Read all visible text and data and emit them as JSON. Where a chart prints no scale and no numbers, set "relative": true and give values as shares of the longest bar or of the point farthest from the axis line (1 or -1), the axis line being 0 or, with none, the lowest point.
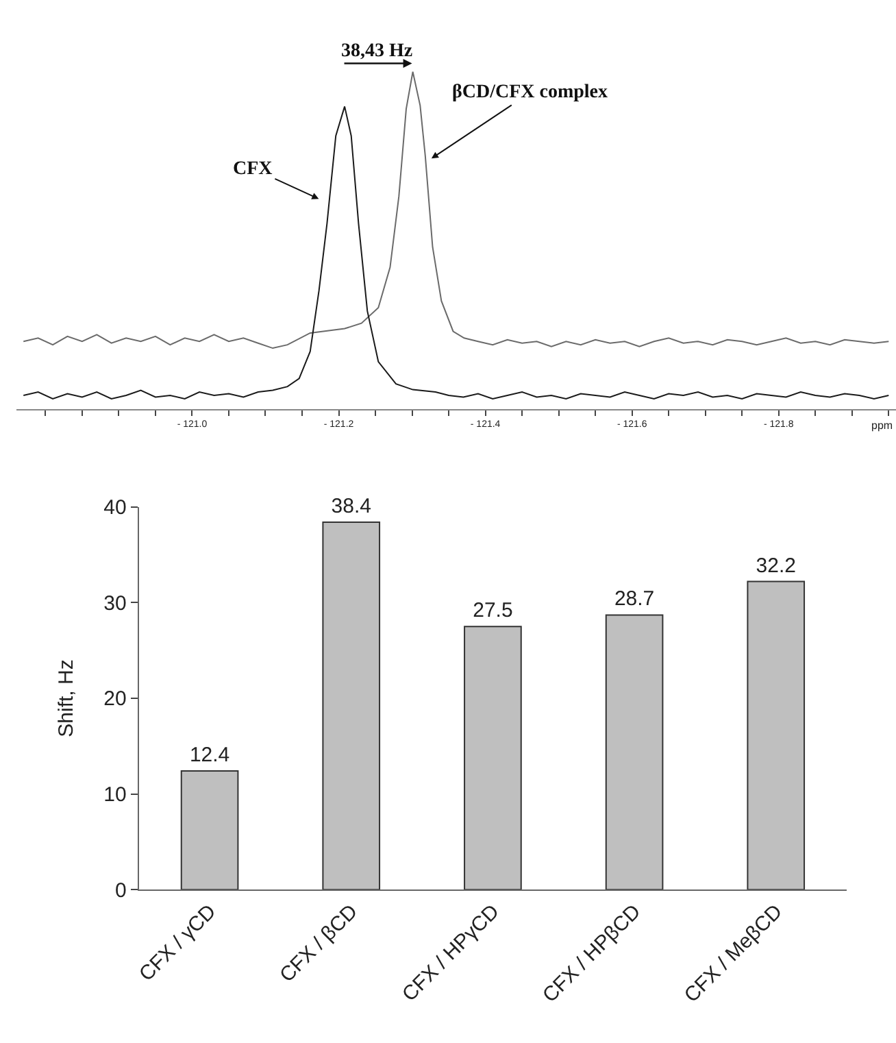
{
  "chart_data": [
    {
      "type": "line",
      "relative": true,
      "xlabel": "ppm",
      "xlim": [
        -120.76,
        -121.96
      ],
      "xticks": [
        {
          "value": -120.8,
          "label": null
        },
        {
          "value": -120.85,
          "label": null
        },
        {
          "value": -120.9,
          "label": null
        },
        {
          "value": -120.95,
          "label": null
        },
        {
          "value": -121.0,
          "label": "- 121.0"
        },
        {
          "value": -121.05,
          "label": null
        },
        {
          "value": -121.1,
          "label": null
        },
        {
          "value": -121.15,
          "label": null
        },
        {
          "value": -121.2,
          "label": "- 121.2"
        },
        {
          "value": -121.25,
          "label": null
        },
        {
          "value": -121.3,
          "label": null
        },
        {
          "value": -121.35,
          "label": null
        },
        {
          "value": -121.4,
          "label": "- 121.4"
        },
        {
          "value": -121.45,
          "label": null
        },
        {
          "value": -121.5,
          "label": null
        },
        {
          "value": -121.55,
          "label": null
        },
        {
          "value": -121.6,
          "label": "- 121.6"
        },
        {
          "value": -121.65,
          "label": null
        },
        {
          "value": -121.7,
          "label": null
        },
        {
          "value": -121.75,
          "label": null
        },
        {
          "value": -121.8,
          "label": "- 121.8"
        },
        {
          "value": -121.85,
          "label": null
        },
        {
          "value": -121.9,
          "label": null
        },
        {
          "value": -121.95,
          "label": null
        }
      ],
      "tick_labels": "x",
      "series": [
        {
          "color": "#6a6a6a",
          "x": [
            -120.77,
            -120.79,
            -120.81,
            -120.83,
            -120.85,
            -120.87,
            -120.89,
            -120.91,
            -120.93,
            -120.95,
            -120.97,
            -120.99,
            -121.01,
            -121.03,
            -121.05,
            -121.07,
            -121.09,
            -121.11,
            -121.13,
            -121.161,
            -121.208,
            -121.231,
            -121.254,
            -121.27,
            -121.282,
            -121.292,
            -121.301,
            -121.311,
            -121.318,
            -121.328,
            -121.34,
            -121.356,
            -121.371,
            -121.39,
            -121.41,
            -121.43,
            -121.45,
            -121.47,
            -121.49,
            -121.51,
            -121.53,
            -121.55,
            -121.57,
            -121.59,
            -121.61,
            -121.63,
            -121.65,
            -121.67,
            -121.69,
            -121.71,
            -121.73,
            -121.75,
            -121.77,
            -121.79,
            -121.81,
            -121.83,
            -121.85,
            -121.87,
            -121.89,
            -121.91,
            -121.93,
            -121.95
          ],
          "values": [
            0.2,
            0.21,
            0.19,
            0.215,
            0.2,
            0.22,
            0.195,
            0.21,
            0.2,
            0.215,
            0.19,
            0.21,
            0.2,
            0.22,
            0.2,
            0.21,
            0.195,
            0.18,
            0.19,
            0.225,
            0.238,
            0.254,
            0.3,
            0.42,
            0.63,
            0.89,
            1.0,
            0.9,
            0.75,
            0.48,
            0.32,
            0.23,
            0.21,
            0.2,
            0.19,
            0.205,
            0.195,
            0.2,
            0.185,
            0.2,
            0.19,
            0.205,
            0.195,
            0.2,
            0.185,
            0.2,
            0.21,
            0.195,
            0.2,
            0.19,
            0.205,
            0.2,
            0.19,
            0.2,
            0.21,
            0.195,
            0.2,
            0.19,
            0.205,
            0.2,
            0.195,
            0.2
          ]
        },
        {
          "color": "#1a1a1a",
          "x": [
            -120.77,
            -120.79,
            -120.81,
            -120.83,
            -120.85,
            -120.87,
            -120.89,
            -120.91,
            -120.93,
            -120.95,
            -120.97,
            -120.99,
            -121.01,
            -121.03,
            -121.05,
            -121.07,
            -121.09,
            -121.11,
            -121.13,
            -121.146,
            -121.161,
            -121.173,
            -121.184,
            -121.196,
            -121.208,
            -121.217,
            -121.227,
            -121.239,
            -121.254,
            -121.278,
            -121.301,
            -121.332,
            -121.35,
            -121.37,
            -121.39,
            -121.41,
            -121.43,
            -121.45,
            -121.47,
            -121.49,
            -121.51,
            -121.53,
            -121.55,
            -121.57,
            -121.59,
            -121.61,
            -121.63,
            -121.65,
            -121.67,
            -121.69,
            -121.71,
            -121.73,
            -121.75,
            -121.77,
            -121.79,
            -121.81,
            -121.83,
            -121.85,
            -121.87,
            -121.89,
            -121.91,
            -121.93,
            -121.95
          ],
          "values": [
            0.04,
            0.05,
            0.03,
            0.045,
            0.035,
            0.05,
            0.03,
            0.04,
            0.055,
            0.035,
            0.04,
            0.03,
            0.05,
            0.04,
            0.045,
            0.035,
            0.05,
            0.055,
            0.066,
            0.09,
            0.17,
            0.35,
            0.55,
            0.81,
            0.897,
            0.81,
            0.55,
            0.29,
            0.14,
            0.074,
            0.057,
            0.05,
            0.04,
            0.035,
            0.045,
            0.03,
            0.04,
            0.05,
            0.035,
            0.04,
            0.03,
            0.045,
            0.04,
            0.035,
            0.05,
            0.04,
            0.03,
            0.045,
            0.04,
            0.05,
            0.035,
            0.04,
            0.03,
            0.045,
            0.04,
            0.035,
            0.05,
            0.04,
            0.035,
            0.045,
            0.04,
            0.03,
            0.04
          ]
        }
      ],
      "annotations": [
        "38,43 Hz",
        "CFX",
        "βCD/CFX complex"
      ]
    },
    {
      "type": "bar",
      "ylabel": "Shift, Hz",
      "categories": [
        "CFX / γCD",
        "CFX / βCD",
        "CFX / HPγCD",
        "CFX / HPβCD",
        "CFX / MeβCD"
      ],
      "values": [
        12.4,
        38.4,
        27.5,
        28.7,
        32.2
      ],
      "color": "#bfbfbf",
      "ylim": [
        0,
        40
      ],
      "yticks": [
        0,
        10,
        20,
        30,
        40
      ],
      "data_labels": true
    }
  ]
}
